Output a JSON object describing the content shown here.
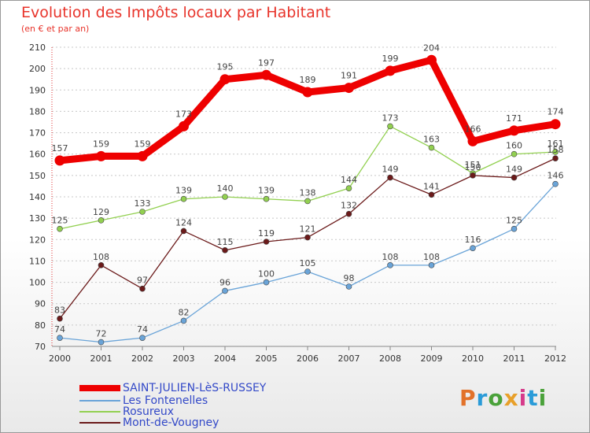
{
  "title": "Evolution des Impôts locaux par Habitant",
  "subtitle": "(en € et par an)",
  "logo": {
    "text": "Proxiti",
    "colors": [
      "#e2722a",
      "#2a9bd8",
      "#4aa23a",
      "#e8a02a",
      "#d63a8a",
      "#2a9bd8",
      "#4aa23a"
    ]
  },
  "chart_data": {
    "type": "line",
    "title": "Evolution des Impôts locaux par Habitant",
    "subtitle": "(en € et par an)",
    "xlabel": "",
    "ylabel": "",
    "ylim": [
      70,
      210
    ],
    "yticks": [
      70,
      80,
      90,
      100,
      110,
      120,
      130,
      140,
      150,
      160,
      170,
      180,
      190,
      200,
      210
    ],
    "categories": [
      "2000",
      "2001",
      "2002",
      "2003",
      "2004",
      "2005",
      "2006",
      "2007",
      "2008",
      "2009",
      "2010",
      "2011",
      "2012"
    ],
    "legend_position": "bottom-left",
    "series": [
      {
        "name": "SAINT-JULIEN-LèS-RUSSEY",
        "color": "#ee0000",
        "values": [
          157,
          159,
          159,
          173,
          195,
          197,
          189,
          191,
          199,
          204,
          166,
          171,
          174
        ]
      },
      {
        "name": "Les Fontenelles",
        "color": "#6aa4d8",
        "values": [
          74,
          72,
          74,
          82,
          96,
          100,
          105,
          98,
          108,
          108,
          116,
          125,
          146
        ]
      },
      {
        "name": "Rosureux",
        "color": "#92d050",
        "values": [
          125,
          129,
          133,
          139,
          140,
          139,
          138,
          144,
          173,
          163,
          151,
          160,
          161
        ]
      },
      {
        "name": "Mont-de-Vougney",
        "color": "#6b1a1a",
        "values": [
          83,
          108,
          97,
          124,
          115,
          119,
          121,
          132,
          149,
          141,
          150,
          149,
          158
        ]
      }
    ]
  }
}
